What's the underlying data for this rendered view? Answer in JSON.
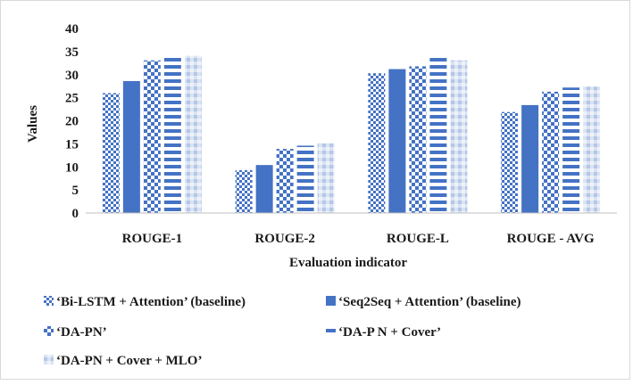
{
  "chart_data": {
    "type": "bar",
    "title": "",
    "xlabel": "Evaluation indicator",
    "ylabel": "Values",
    "ylim": [
      0,
      40
    ],
    "yticks": [
      0,
      5,
      10,
      15,
      20,
      25,
      30,
      35,
      40
    ],
    "grid": false,
    "legend_position": "bottom",
    "categories": [
      "ROUGE-1",
      "ROUGE-2",
      "ROUGE-L",
      "ROUGE - AVG"
    ],
    "series": [
      {
        "name": "‘Bi-LSTM + Attention’ (baseline)",
        "values": [
          26.0,
          9.3,
          30.3,
          21.9
        ],
        "color": "#4472c4",
        "pattern": "small-checker"
      },
      {
        "name": "‘Seq2Seq + Attention’ (baseline)",
        "values": [
          28.6,
          10.4,
          31.2,
          23.4
        ],
        "color": "#4472c4",
        "pattern": "solid"
      },
      {
        "name": "‘DA-PN’",
        "values": [
          33.1,
          13.9,
          31.8,
          26.3
        ],
        "color": "#4472c4",
        "pattern": "checker"
      },
      {
        "name": "‘DA-P N + Cover’",
        "values": [
          33.7,
          14.6,
          33.7,
          27.2
        ],
        "color": "#4472c4",
        "pattern": "dashes"
      },
      {
        "name": "‘DA-PN + Cover + MLO’",
        "values": [
          34.1,
          15.1,
          33.1,
          27.4
        ],
        "color": "#b4c7e7",
        "pattern": "light-grid"
      }
    ]
  }
}
